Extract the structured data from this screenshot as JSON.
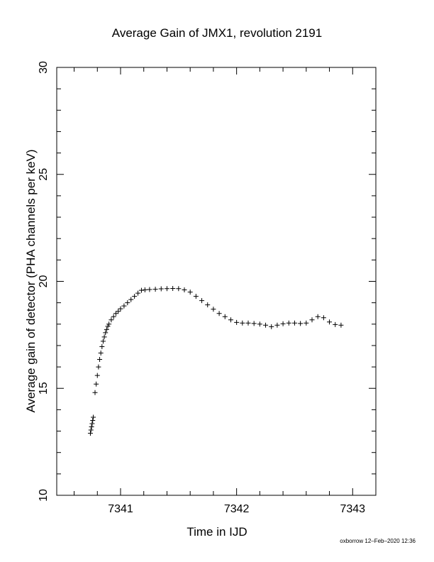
{
  "chart_data": {
    "type": "scatter",
    "title": "Average Gain of JMX1, revolution 2191",
    "xlabel": "Time in IJD",
    "ylabel": "Average gain of detector (PHA channels per keV)",
    "xlim": [
      7340.45,
      7343.2
    ],
    "ylim": [
      10,
      30
    ],
    "x_ticks": [
      7341,
      7342,
      7343
    ],
    "x_tick_labels": [
      "7341",
      "7342",
      "7343"
    ],
    "y_ticks": [
      10,
      15,
      20,
      25,
      30
    ],
    "y_tick_labels": [
      "10",
      "15",
      "20",
      "25",
      "30"
    ],
    "marker": "+",
    "grid": false,
    "legend": "none",
    "series": [
      {
        "x": [
          7340.74,
          7340.745,
          7340.75,
          7340.755,
          7340.76,
          7340.765,
          7340.78,
          7340.79,
          7340.8,
          7340.81,
          7340.82,
          7340.83,
          7340.84,
          7340.85,
          7340.86,
          7340.87,
          7340.88,
          7340.89,
          7340.9,
          7340.92,
          7340.94,
          7340.96,
          7340.98,
          7341.0,
          7341.03,
          7341.06,
          7341.09,
          7341.12,
          7341.15,
          7341.18,
          7341.21,
          7341.25,
          7341.3,
          7341.35,
          7341.4,
          7341.45,
          7341.5,
          7341.55,
          7341.6,
          7341.65,
          7341.7,
          7341.75,
          7341.8,
          7341.85,
          7341.9,
          7341.95,
          7342.0,
          7342.05,
          7342.1,
          7342.15,
          7342.2,
          7342.25,
          7342.3,
          7342.35,
          7342.4,
          7342.45,
          7342.5,
          7342.55,
          7342.6,
          7342.65,
          7342.7,
          7342.75,
          7342.8,
          7342.85,
          7342.9
        ],
        "y": [
          12.9,
          13.05,
          13.2,
          13.35,
          13.5,
          13.65,
          14.8,
          15.2,
          15.6,
          16.0,
          16.35,
          16.65,
          16.95,
          17.2,
          17.4,
          17.6,
          17.75,
          17.9,
          18.0,
          18.2,
          18.35,
          18.5,
          18.6,
          18.72,
          18.85,
          19.0,
          19.15,
          19.3,
          19.45,
          19.58,
          19.6,
          19.62,
          19.63,
          19.65,
          19.66,
          19.67,
          19.66,
          19.6,
          19.5,
          19.3,
          19.1,
          18.9,
          18.7,
          18.5,
          18.35,
          18.2,
          18.08,
          18.05,
          18.05,
          18.03,
          18.0,
          17.95,
          17.88,
          17.95,
          18.02,
          18.05,
          18.05,
          18.03,
          18.05,
          18.2,
          18.35,
          18.3,
          18.1,
          17.98,
          17.95
        ]
      }
    ]
  },
  "footer": {
    "credit": "oxborrow 12–Feb–2020 12:36"
  }
}
